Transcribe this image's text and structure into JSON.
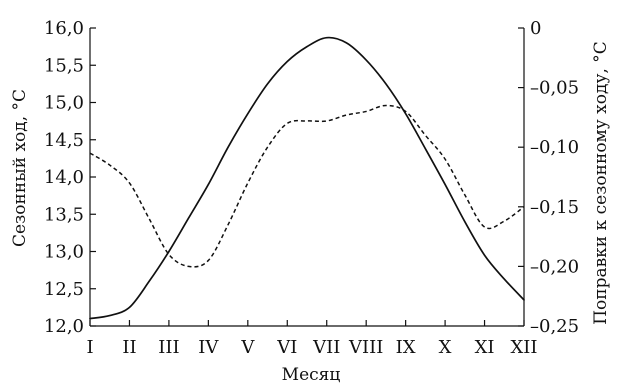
{
  "chart_data": {
    "type": "line",
    "xlabel": "Месяц",
    "ylabel_left": "Сезонный ход, °C",
    "ylabel_right": "Поправки к сезонному ходу, °C",
    "x_ticks": [
      "I",
      "II",
      "III",
      "IV",
      "V",
      "VI",
      "VII",
      "VIII",
      "IX",
      "X",
      "XI",
      "XII"
    ],
    "y_left_ticks": [
      "12,0",
      "12,5",
      "13,0",
      "13,5",
      "14,0",
      "14,5",
      "15,0",
      "15,5",
      "16,0"
    ],
    "y_right_ticks": [
      "0",
      "–0,05",
      "–0,10",
      "–0,15",
      "–0,20",
      "–0,25"
    ],
    "x_range": [
      1,
      12
    ],
    "y_left_range": [
      12.0,
      16.0
    ],
    "y_right_range": [
      -0.25,
      0.0
    ],
    "grid": false,
    "series": [
      {
        "axis": "left",
        "style": "solid",
        "x": [
          1,
          1.5,
          2,
          2.5,
          3,
          3.5,
          4,
          4.5,
          5,
          5.5,
          6,
          6.5,
          7,
          7.5,
          8,
          8.5,
          9,
          9.5,
          10,
          10.5,
          11,
          11.5,
          12
        ],
        "values": [
          12.1,
          12.14,
          12.25,
          12.6,
          13.0,
          13.45,
          13.9,
          14.4,
          14.85,
          15.25,
          15.55,
          15.75,
          15.87,
          15.8,
          15.57,
          15.25,
          14.85,
          14.38,
          13.9,
          13.4,
          12.95,
          12.63,
          12.35
        ]
      },
      {
        "axis": "right",
        "style": "dashed",
        "x": [
          1,
          1.5,
          2,
          2.5,
          3,
          3.5,
          4,
          4.5,
          5,
          5.5,
          6,
          6.5,
          7,
          7.5,
          8,
          8.5,
          9,
          9.5,
          10,
          10.5,
          11,
          11.5,
          12
        ],
        "values": [
          -0.105,
          -0.115,
          -0.13,
          -0.16,
          -0.19,
          -0.2,
          -0.195,
          -0.165,
          -0.13,
          -0.1,
          -0.08,
          -0.078,
          -0.078,
          -0.073,
          -0.07,
          -0.065,
          -0.07,
          -0.09,
          -0.11,
          -0.14,
          -0.167,
          -0.162,
          -0.15
        ]
      }
    ]
  }
}
